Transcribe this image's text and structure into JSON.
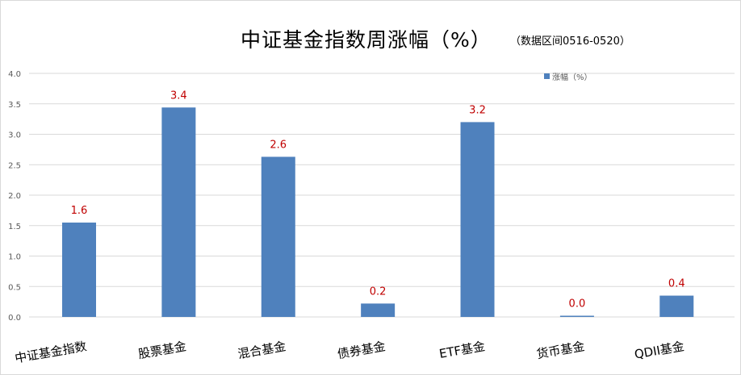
{
  "chart_data": {
    "type": "bar",
    "title": "中证基金指数周涨幅（%）",
    "subtitle": "（数据区间0516-0520）",
    "categories": [
      "中证基金指数",
      "股票基金",
      "混合基金",
      "债券基金",
      "ETF基金",
      "货币基金",
      "QDII基金"
    ],
    "series": [
      {
        "name": "涨幅（%）",
        "values": [
          1.55,
          3.44,
          2.63,
          0.22,
          3.2,
          0.02,
          0.35
        ],
        "labels": [
          "1.6",
          "3.4",
          "2.6",
          "0.2",
          "3.2",
          "0.0",
          "0.4"
        ],
        "color": "#4f81bd"
      }
    ],
    "ylim": [
      0,
      4.0
    ],
    "yticks": [
      "0.0",
      "0.5",
      "1.0",
      "1.5",
      "2.0",
      "2.5",
      "3.0",
      "3.5",
      "4.0"
    ],
    "grid": true,
    "legend_position": "top-right",
    "label_color": "#c00000",
    "xlabel": "",
    "ylabel": ""
  }
}
